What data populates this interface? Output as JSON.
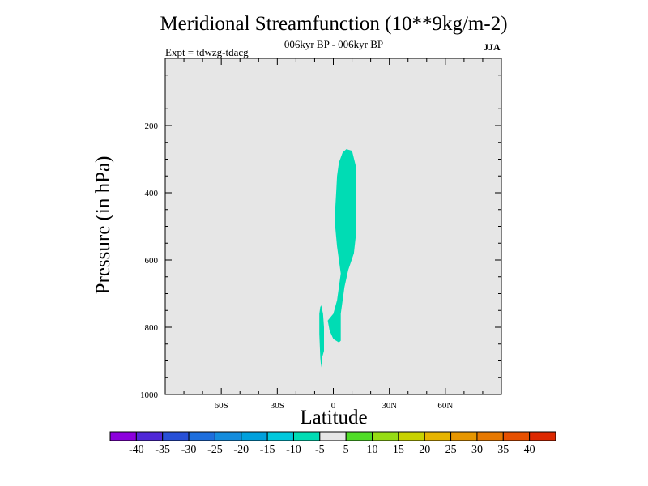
{
  "chart_data": {
    "type": "contour",
    "title": "Meridional Streamfunction (10**9kg/m-2)",
    "subtitle": "006kyr BP - 006kyr BP",
    "expt": "Expt = tdwzg-tdacg",
    "season": "JJA",
    "xlabel": "Latitude",
    "ylabel": "Pressure (in hPa)",
    "xlim": [
      -90,
      90
    ],
    "ylim": [
      1000,
      0
    ],
    "x_ticks": [
      {
        "value": -60,
        "label": "60S"
      },
      {
        "value": -30,
        "label": "30S"
      },
      {
        "value": 0,
        "label": "0"
      },
      {
        "value": 30,
        "label": "30N"
      },
      {
        "value": 60,
        "label": "60N"
      }
    ],
    "y_ticks": [
      {
        "value": 200,
        "label": "200"
      },
      {
        "value": 400,
        "label": "400"
      },
      {
        "value": 600,
        "label": "600"
      },
      {
        "value": 800,
        "label": "800"
      },
      {
        "value": 1000,
        "label": "1000"
      }
    ],
    "background_color": "#e6e6e6",
    "contour_regions": [
      {
        "level_range": [
          -10,
          -5
        ],
        "color": "#00dcb4",
        "points": [
          [
            7,
            270
          ],
          [
            10,
            275
          ],
          [
            12,
            320
          ],
          [
            12,
            450
          ],
          [
            12,
            530
          ],
          [
            11,
            580
          ],
          [
            8,
            630
          ],
          [
            6,
            680
          ],
          [
            4,
            760
          ],
          [
            4,
            840
          ],
          [
            3,
            845
          ],
          [
            0,
            835
          ],
          [
            -2,
            810
          ],
          [
            -3,
            780
          ],
          [
            0,
            760
          ],
          [
            2,
            720
          ],
          [
            3,
            680
          ],
          [
            4,
            640
          ],
          [
            3,
            600
          ],
          [
            2,
            560
          ],
          [
            1,
            500
          ],
          [
            1,
            450
          ],
          [
            1.5,
            400
          ],
          [
            2,
            350
          ],
          [
            3,
            310
          ],
          [
            5,
            280
          ]
        ]
      },
      {
        "level_range": [
          -10,
          -5
        ],
        "color": "#00dcb4",
        "points": [
          [
            -6.5,
            735
          ],
          [
            -5.5,
            760
          ],
          [
            -5,
            800
          ],
          [
            -5,
            870
          ],
          [
            -6,
            890
          ],
          [
            -6.5,
            920
          ],
          [
            -7,
            890
          ],
          [
            -7.5,
            820
          ],
          [
            -7.5,
            760
          ],
          [
            -7,
            740
          ]
        ]
      }
    ],
    "colorbar": {
      "levels": [
        "-40",
        "-35",
        "-30",
        "-25",
        "-20",
        "-15",
        "-10",
        "-5",
        "5",
        "10",
        "15",
        "20",
        "25",
        "30",
        "35",
        "40"
      ],
      "colors": [
        "#8c00dc",
        "#5028d7",
        "#2850d7",
        "#1e6edc",
        "#148cdc",
        "#00a0dc",
        "#00c8dc",
        "#00dcb4",
        "#e6e6e6",
        "#50dc28",
        "#96dc14",
        "#c8d200",
        "#e6b400",
        "#e69600",
        "#e67800",
        "#e65000",
        "#dc2800"
      ]
    }
  }
}
